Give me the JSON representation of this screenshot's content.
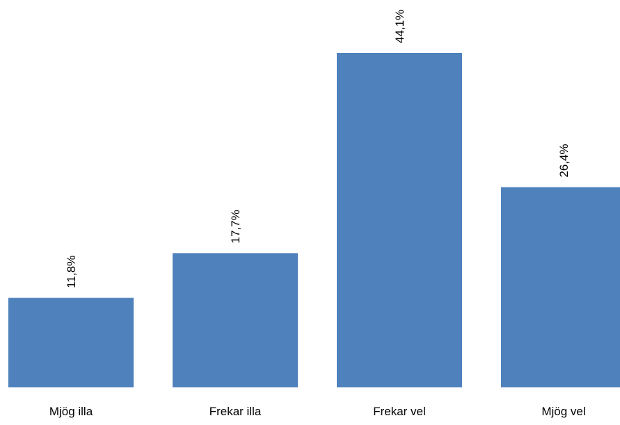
{
  "chart_data": {
    "type": "bar",
    "categories": [
      "Mjög illa",
      "Frekar illa",
      "Frekar vel",
      "Mjög vel"
    ],
    "values": [
      11.8,
      17.7,
      44.1,
      26.4
    ],
    "value_labels": [
      "11,8%",
      "17,7%",
      "44,1%",
      "26,4%"
    ],
    "title": "",
    "xlabel": "",
    "ylabel": "",
    "ylim": [
      0,
      44.1
    ],
    "grid": false,
    "legend": "none",
    "bar_color": "#4f81bd"
  }
}
